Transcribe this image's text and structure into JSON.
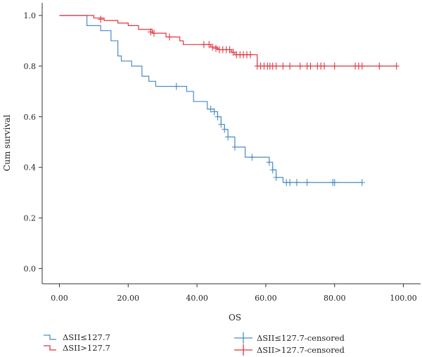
{
  "chart_data": {
    "type": "line",
    "subtype": "kaplan-meier",
    "title": "",
    "xlabel": "OS",
    "ylabel": "Cum survival",
    "xlim": [
      -5,
      105
    ],
    "ylim": [
      -0.06,
      1.05
    ],
    "xticks": [
      0,
      20,
      40,
      60,
      80,
      100
    ],
    "xtick_labels": [
      "0.00",
      "20.00",
      "40.00",
      "60.00",
      "80.00",
      "100.00"
    ],
    "yticks": [
      0,
      0.2,
      0.4,
      0.6,
      0.8,
      1.0
    ],
    "ytick_labels": [
      "0.0",
      "0.2",
      "0.4",
      "0.6",
      "0.8",
      "1.0"
    ],
    "grid": false,
    "legend_position": "bottom",
    "series": [
      {
        "name": "ΔSII≤127.7",
        "color": "#4a8cc7",
        "censored_label": "ΔSII≤127.7-censored",
        "steps": [
          [
            0,
            1.0
          ],
          [
            8,
            0.96
          ],
          [
            12,
            0.94
          ],
          [
            15,
            0.9
          ],
          [
            17,
            0.84
          ],
          [
            18,
            0.82
          ],
          [
            21,
            0.8
          ],
          [
            24,
            0.76
          ],
          [
            26,
            0.74
          ],
          [
            28,
            0.72
          ],
          [
            37,
            0.7
          ],
          [
            39,
            0.66
          ],
          [
            43,
            0.63
          ],
          [
            45,
            0.62
          ],
          [
            46,
            0.6
          ],
          [
            47,
            0.57
          ],
          [
            48,
            0.55
          ],
          [
            49,
            0.52
          ],
          [
            51,
            0.48
          ],
          [
            54,
            0.44
          ],
          [
            61,
            0.42
          ],
          [
            62,
            0.39
          ],
          [
            63,
            0.36
          ],
          [
            65,
            0.34
          ],
          [
            88,
            0.34
          ]
        ],
        "censored": [
          [
            34,
            0.72
          ],
          [
            44,
            0.63
          ],
          [
            45,
            0.62
          ],
          [
            46,
            0.6
          ],
          [
            47,
            0.57
          ],
          [
            48,
            0.55
          ],
          [
            49,
            0.52
          ],
          [
            51,
            0.48
          ],
          [
            56,
            0.44
          ],
          [
            61,
            0.42
          ],
          [
            62,
            0.39
          ],
          [
            63,
            0.36
          ],
          [
            66,
            0.34
          ],
          [
            67,
            0.34
          ],
          [
            69,
            0.34
          ],
          [
            72,
            0.34
          ],
          [
            79.5,
            0.34
          ],
          [
            80,
            0.34
          ],
          [
            88,
            0.34
          ]
        ]
      },
      {
        "name": "ΔSII>127.7",
        "color": "#e0353f",
        "censored_label": "ΔSII>127.7-censored",
        "steps": [
          [
            0,
            1.0
          ],
          [
            10,
            0.99
          ],
          [
            13,
            0.98
          ],
          [
            17,
            0.97
          ],
          [
            20,
            0.96
          ],
          [
            23,
            0.945
          ],
          [
            27,
            0.93
          ],
          [
            31,
            0.915
          ],
          [
            35,
            0.9
          ],
          [
            36,
            0.885
          ],
          [
            43,
            0.885
          ],
          [
            44,
            0.875
          ],
          [
            46,
            0.865
          ],
          [
            50,
            0.855
          ],
          [
            51,
            0.845
          ],
          [
            55,
            0.845
          ],
          [
            57.5,
            0.8
          ],
          [
            98,
            0.8
          ]
        ],
        "censored": [
          [
            12,
            0.985
          ],
          [
            26.5,
            0.935
          ],
          [
            27.5,
            0.93
          ],
          [
            32,
            0.915
          ],
          [
            42,
            0.885
          ],
          [
            43.5,
            0.885
          ],
          [
            44.5,
            0.875
          ],
          [
            45.5,
            0.87
          ],
          [
            46.5,
            0.865
          ],
          [
            47.5,
            0.865
          ],
          [
            48.5,
            0.865
          ],
          [
            49.5,
            0.865
          ],
          [
            50.5,
            0.855
          ],
          [
            51.5,
            0.845
          ],
          [
            52.5,
            0.845
          ],
          [
            53.5,
            0.845
          ],
          [
            54.5,
            0.845
          ],
          [
            55.5,
            0.845
          ],
          [
            57.5,
            0.8
          ],
          [
            58.5,
            0.8
          ],
          [
            59.5,
            0.8
          ],
          [
            60.5,
            0.8
          ],
          [
            61.2,
            0.8
          ],
          [
            62,
            0.8
          ],
          [
            63,
            0.8
          ],
          [
            65,
            0.8
          ],
          [
            67,
            0.8
          ],
          [
            70,
            0.8
          ],
          [
            72,
            0.8
          ],
          [
            73,
            0.8
          ],
          [
            75,
            0.8
          ],
          [
            76,
            0.8
          ],
          [
            77,
            0.8
          ],
          [
            80,
            0.8
          ],
          [
            86,
            0.8
          ],
          [
            87,
            0.8
          ],
          [
            88,
            0.8
          ],
          [
            93,
            0.8
          ],
          [
            98,
            0.8
          ]
        ]
      }
    ]
  }
}
